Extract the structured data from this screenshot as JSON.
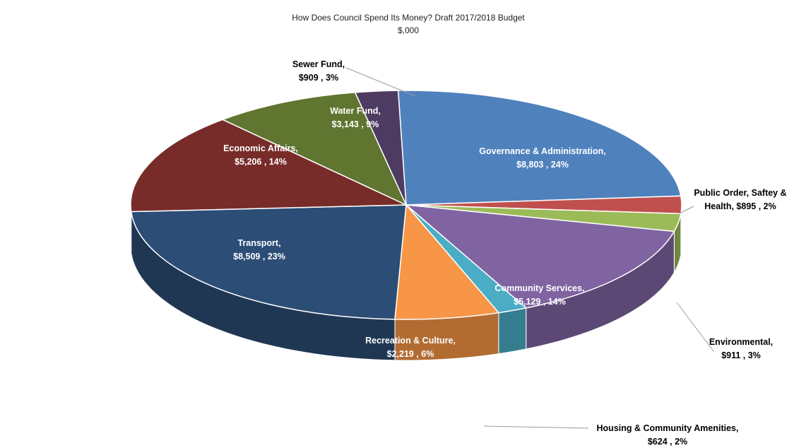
{
  "chart_data": {
    "type": "pie",
    "title": "How Does Council Spend Its Money? Draft 2017/2018 Budget",
    "subtitle": "$,000",
    "legend": "none",
    "slices": [
      {
        "name": "Governance & Administration",
        "value": 8803,
        "percent": "24%",
        "value_text": "$8,803",
        "color": "#4F81BD",
        "label_line1": "Governance & Administration,",
        "label_line2": "$8,803 , 24%"
      },
      {
        "name": "Public Order, Saftey & Health",
        "value": 895,
        "percent": "2%",
        "value_text": "$895",
        "color": "#C0504D",
        "label_line1": "Public Order, Saftey &",
        "label_line2": "Health,  $895 , 2%"
      },
      {
        "name": "Environmental",
        "value": 911,
        "percent": "3%",
        "value_text": "$911",
        "color": "#9BBB59",
        "label_line1": "Environmental,",
        "label_line2": "$911 , 3%"
      },
      {
        "name": "Community Services",
        "value": 5129,
        "percent": "14%",
        "value_text": "$5,129",
        "color": "#8064A2",
        "label_line1": "Community Services,",
        "label_line2": "$5,129 , 14%"
      },
      {
        "name": "Housing & Community Amenities",
        "value": 624,
        "percent": "2%",
        "value_text": "$624",
        "color": "#4BACC6",
        "label_line1": "Housing & Community Amenities,",
        "label_line2": "$624 , 2%"
      },
      {
        "name": "Recreation & Culture",
        "value": 2219,
        "percent": "6%",
        "value_text": "$2,219",
        "color": "#F79646",
        "label_line1": "Recreation & Culture,",
        "label_line2": "$2,219 , 6%"
      },
      {
        "name": "Transport",
        "value": 8509,
        "percent": "23%",
        "value_text": "$8,509",
        "color": "#2C4D75",
        "label_line1": "Transport,",
        "label_line2": "$8,509 , 23%"
      },
      {
        "name": "Economic Affairs",
        "value": 5206,
        "percent": "14%",
        "value_text": "$5,206",
        "color": "#772C2A",
        "label_line1": "Economic Affairs,",
        "label_line2": "$5,206 , 14%"
      },
      {
        "name": "Water Fund",
        "value": 3143,
        "percent": "9%",
        "value_text": "$3,143",
        "color": "#5F7530",
        "label_line1": "Water Fund,",
        "label_line2": "$3,143 , 9%"
      },
      {
        "name": "Sewer Fund",
        "value": 909,
        "percent": "3%",
        "value_text": "$909",
        "color": "#4D3B62",
        "label_line1": "Sewer Fund,",
        "label_line2": "$909 , 3%"
      }
    ]
  }
}
